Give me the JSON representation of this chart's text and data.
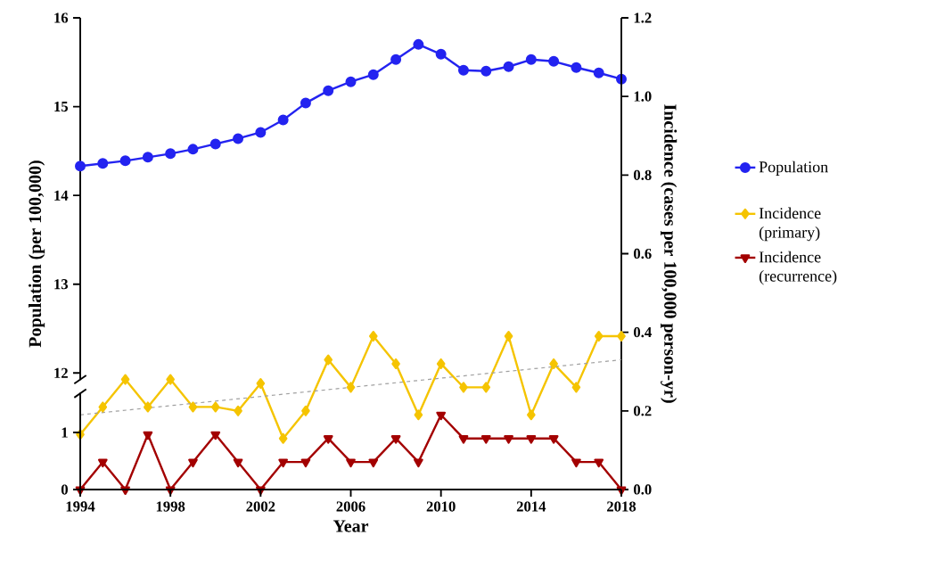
{
  "chart_data": [
    {
      "type": "line",
      "ylabel": "Population (per 100,000)",
      "x": [
        1994,
        1995,
        1996,
        1997,
        1998,
        1999,
        2000,
        2001,
        2002,
        2003,
        2004,
        2005,
        2006,
        2007,
        2008,
        2009,
        2010,
        2011,
        2012,
        2013,
        2014,
        2015,
        2016,
        2017,
        2018
      ],
      "xlim": [
        1994,
        2018
      ],
      "ylim": [
        11.92,
        16
      ],
      "yticks": [
        12,
        13,
        14,
        15,
        16
      ],
      "tick_labels": "y",
      "legend": "right",
      "series": [
        {
          "name": "Population",
          "color": "#2323f0",
          "marker": "circle",
          "values": [
            14.33,
            14.36,
            14.39,
            14.43,
            14.47,
            14.52,
            14.58,
            14.64,
            14.71,
            14.85,
            15.04,
            15.18,
            15.28,
            15.36,
            15.53,
            15.7,
            15.59,
            15.41,
            15.4,
            15.45,
            15.53,
            15.51,
            15.44,
            15.38,
            15.31
          ]
        }
      ]
    },
    {
      "type": "line",
      "xlabel": "Year",
      "y2label": "Incidence (cases per 100,000 person-yr)",
      "x": [
        1994,
        1995,
        1996,
        1997,
        1998,
        1999,
        2000,
        2001,
        2002,
        2003,
        2004,
        2005,
        2006,
        2007,
        2008,
        2009,
        2010,
        2011,
        2012,
        2013,
        2014,
        2015,
        2016,
        2017,
        2018
      ],
      "xlim": [
        1994,
        2018
      ],
      "xticks": [
        1994,
        1998,
        2002,
        2006,
        2010,
        2014,
        2018
      ],
      "ylim": [
        0,
        8.27
      ],
      "yticks": [
        0,
        1
      ],
      "y2lim": [
        0,
        1.2
      ],
      "y2ticks": [
        {
          "value": 0,
          "label": "0.0"
        },
        0.2,
        0.4,
        0.6,
        0.8,
        {
          "value": 1.0,
          "label": "1.0"
        },
        1.2
      ],
      "legend": "right",
      "series": [
        {
          "name": "Incidence (primary)",
          "color": "#f5c400",
          "marker": "diamond",
          "axis": "y2",
          "values": [
            0.14,
            0.21,
            0.28,
            0.21,
            0.28,
            0.21,
            0.21,
            0.2,
            0.27,
            0.13,
            0.2,
            0.33,
            0.26,
            0.39,
            0.32,
            0.19,
            0.32,
            0.26,
            0.26,
            0.39,
            0.19,
            0.32,
            0.26,
            0.39,
            0.39
          ]
        },
        {
          "name": "Incidence (recurrence)",
          "color": "#a30000",
          "marker": "triangle",
          "axis": "y2",
          "values": [
            0,
            0.07,
            0,
            0.14,
            0,
            0.07,
            0.14,
            0.07,
            0,
            0.07,
            0.07,
            0.13,
            0.07,
            0.07,
            0.13,
            0.07,
            0.19,
            0.13,
            0.13,
            0.13,
            0.13,
            0.13,
            0.07,
            0.07,
            0
          ]
        },
        {
          "type": "line",
          "color": "#a0a0a0",
          "line_style": "dashed",
          "marker": "none",
          "axis": "y2",
          "x": [
            1994,
            2018
          ],
          "values": [
            0.19,
            0.33
          ]
        }
      ]
    }
  ]
}
